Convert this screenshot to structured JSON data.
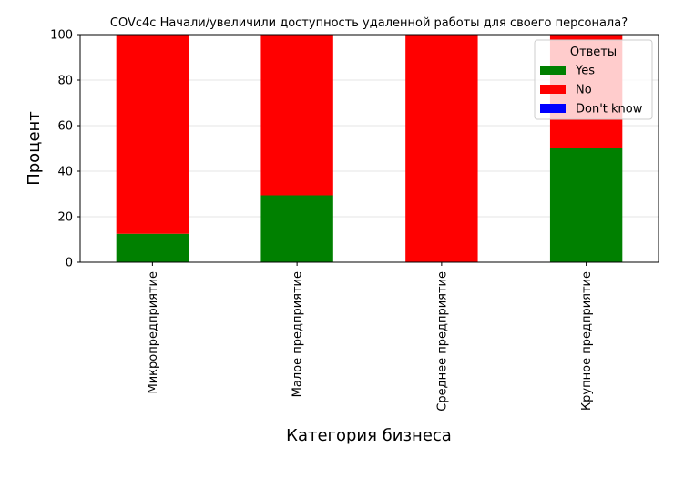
{
  "chart_data": {
    "type": "bar",
    "stacked": true,
    "title": "COVc4c Начали/увеличили доступность удаленной работы для своего персонала?",
    "xlabel": "Категория бизнеса",
    "ylabel": "Процент",
    "ylim": [
      0,
      100
    ],
    "yticks": [
      0,
      20,
      40,
      60,
      80,
      100
    ],
    "grid": true,
    "legend_placement": "top-right",
    "legend_title": "Ответы",
    "categories": [
      "Микропредприятие",
      "Малое предприятие",
      "Среднее предприятие",
      "Крупное предприятие"
    ],
    "series": [
      {
        "name": "Yes",
        "color": "#008000",
        "values": [
          12.5,
          29.4,
          0,
          50
        ]
      },
      {
        "name": "No",
        "color": "#ff0000",
        "values": [
          87.5,
          70.6,
          100,
          50
        ]
      },
      {
        "name": "Don't know",
        "color": "#0000ff",
        "values": [
          0,
          0,
          0,
          0
        ]
      }
    ]
  }
}
